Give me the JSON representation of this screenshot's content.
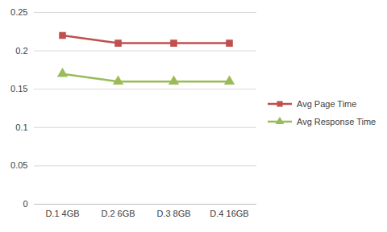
{
  "chart_data": {
    "type": "line",
    "categories": [
      "D.1 4GB",
      "D.2 6GB",
      "D.3 8GB",
      "D.4 16GB"
    ],
    "series": [
      {
        "name": "Avg Page Time",
        "color": "#c0504d",
        "marker": "square",
        "values": [
          0.22,
          0.21,
          0.21,
          0.21
        ]
      },
      {
        "name": "Avg Response Time",
        "color": "#9bbb59",
        "marker": "triangle",
        "values": [
          0.17,
          0.16,
          0.16,
          0.16
        ]
      }
    ],
    "ylim": [
      0,
      0.25
    ],
    "yticks": [
      0,
      0.05,
      0.1,
      0.15,
      0.2,
      0.25
    ],
    "grid": true,
    "legend": "right"
  }
}
